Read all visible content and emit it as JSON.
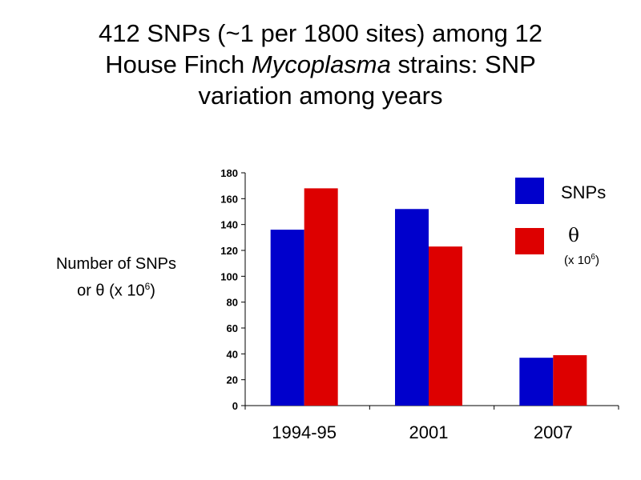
{
  "title": {
    "line1": "412 SNPs (~1 per 1800 sites) among 12",
    "line2_pre": "House Finch ",
    "line2_italic": "Mycoplasma",
    "line2_post": " strains: SNP",
    "line3": "variation among years"
  },
  "ylabel": {
    "line1": "Number of SNPs",
    "line2_pre": "or θ (x 10",
    "line2_sup": "6",
    "line2_post": ")"
  },
  "legend": [
    {
      "label": "SNPs",
      "sub": "",
      "sub_sup": "",
      "sub_post": ""
    },
    {
      "label": "θ",
      "sub": "(x 10",
      "sub_sup": "6",
      "sub_post": ")"
    }
  ],
  "colors": {
    "snps": "#0000CC",
    "theta": "#DD0000"
  },
  "chart_data": {
    "type": "bar",
    "categories": [
      "1994-95",
      "2001",
      "2007"
    ],
    "series": [
      {
        "name": "SNPs",
        "values": [
          136,
          152,
          37
        ]
      },
      {
        "name": "θ (x 10^6)",
        "values": [
          168,
          123,
          39
        ]
      }
    ],
    "ylabel": "Number of SNPs or θ (x 10^6)",
    "yticks": [
      0,
      20,
      40,
      60,
      80,
      100,
      120,
      140,
      160,
      180
    ],
    "ylim": [
      0,
      180
    ]
  }
}
